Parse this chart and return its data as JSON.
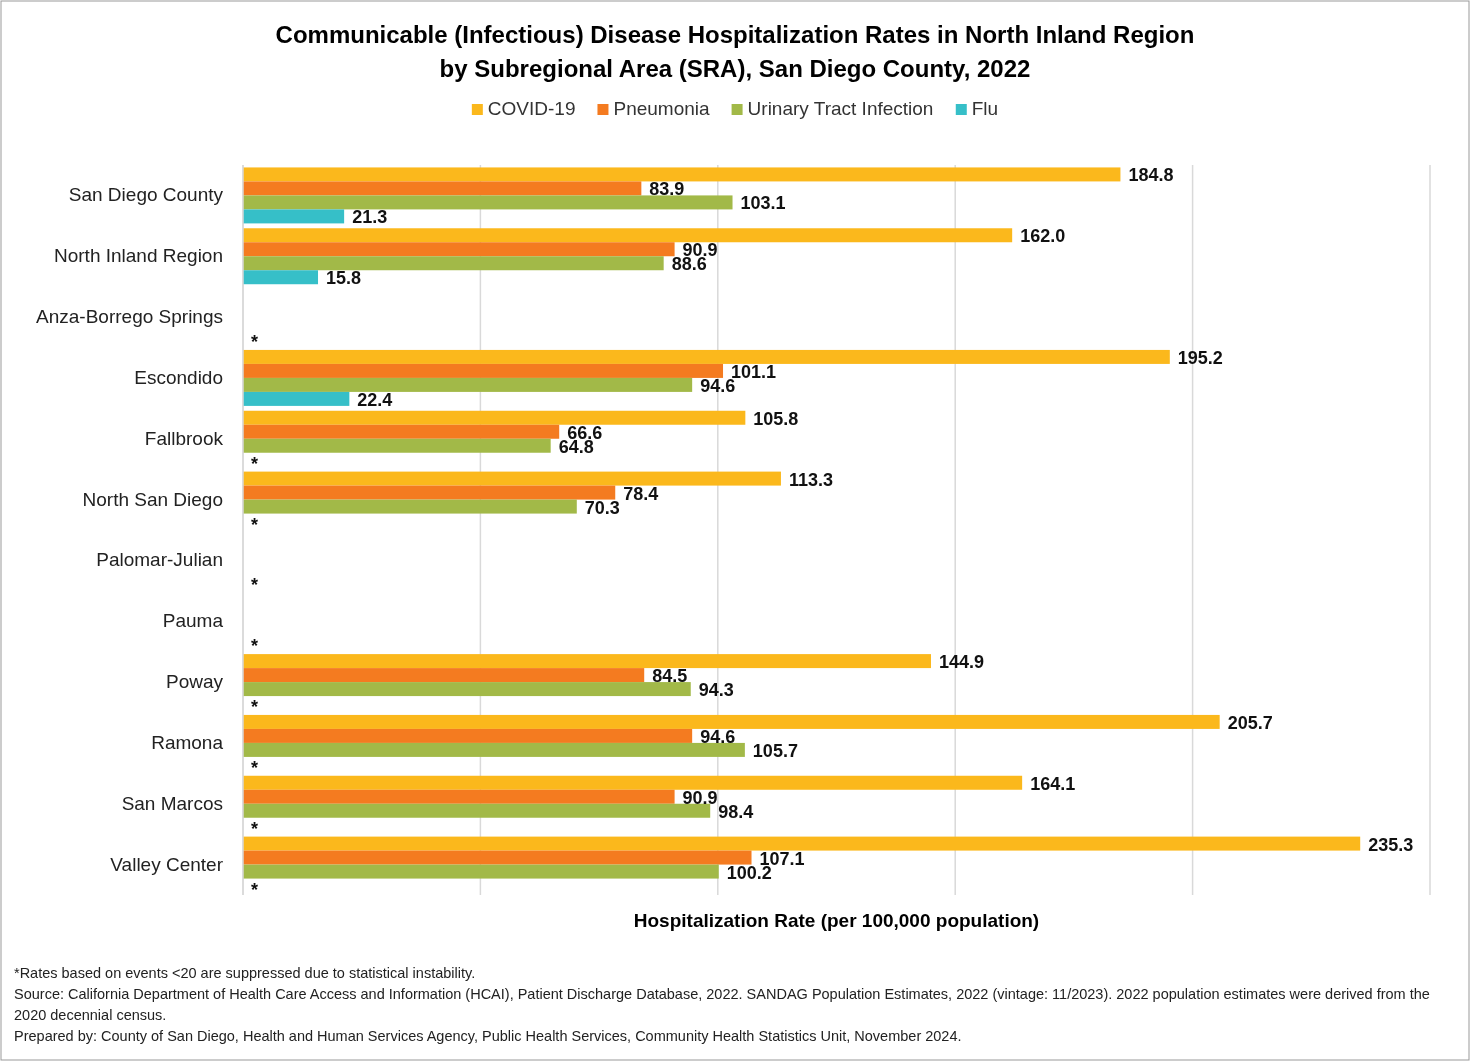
{
  "chart_data": {
    "type": "bar",
    "orientation": "horizontal",
    "title": "Communicable (Infectious) Disease Hospitalization Rates in North Inland Region\nby Subregional Area (SRA), San Diego County, 2022",
    "xlabel": "Hospitalization Rate (per 100,000 population)",
    "categories": [
      "San Diego County",
      "North Inland Region",
      "Anza-Borrego Springs",
      "Escondido",
      "Fallbrook",
      "North San Diego",
      "Palomar-Julian",
      "Pauma",
      "Poway",
      "Ramona",
      "San Marcos",
      "Valley Center"
    ],
    "series": [
      {
        "name": "COVID-19",
        "color": "#fbb81c",
        "values": [
          184.8,
          162.0,
          null,
          195.2,
          105.8,
          113.3,
          null,
          null,
          144.9,
          205.7,
          164.1,
          235.3
        ],
        "value_labels": [
          "184.8",
          "162.0",
          null,
          "195.2",
          "105.8",
          "113.3",
          null,
          null,
          "144.9",
          "205.7",
          "164.1",
          "235.3"
        ]
      },
      {
        "name": "Pneumonia",
        "color": "#f47b20",
        "values": [
          83.9,
          90.9,
          null,
          101.1,
          66.6,
          78.4,
          null,
          null,
          84.5,
          94.6,
          90.9,
          107.1
        ],
        "value_labels": [
          "83.9",
          "90.9",
          null,
          "101.1",
          "66.6",
          "78.4",
          null,
          null,
          "84.5",
          "94.6",
          "90.9",
          "107.1"
        ]
      },
      {
        "name": "Urinary Tract Infection",
        "color": "#a2b948",
        "values": [
          103.1,
          88.6,
          null,
          94.6,
          64.8,
          70.3,
          null,
          null,
          94.3,
          105.7,
          98.4,
          100.2
        ],
        "value_labels": [
          "103.1",
          "88.6",
          null,
          "94.6",
          "64.8",
          "70.3",
          null,
          null,
          "94.3",
          "105.7",
          "98.4",
          "100.2"
        ]
      },
      {
        "name": "Flu",
        "color": "#36bfc8",
        "values": [
          21.3,
          15.8,
          null,
          22.4,
          null,
          null,
          null,
          null,
          null,
          null,
          null,
          null
        ],
        "value_labels": [
          "21.3",
          "15.8",
          "*",
          "22.4",
          "*",
          "*",
          "*",
          "*",
          "*",
          "*",
          "*",
          "*"
        ]
      }
    ],
    "xlim": [
      0,
      250
    ],
    "xticks": [
      {
        "value": 0,
        "label": null
      },
      {
        "value": 50,
        "label": null
      },
      {
        "value": 100,
        "label": null
      },
      {
        "value": 150,
        "label": null
      },
      {
        "value": 200,
        "label": null
      },
      {
        "value": 250,
        "label": null
      }
    ],
    "tick_labels": "y",
    "grid": "x",
    "legend": "top",
    "annotations": [
      "*Rates based on events <20 are suppressed due to statistical instability.",
      "Source: California Department of Health Care Access and Information (HCAI), Patient Discharge Database, 2022. SANDAG Population Estimates, 2022 (vintage: 11/2023). 2022 population estimates were derived from the 2020 decennial census.",
      "Prepared by: County of San Diego, Health and Human Services Agency, Public Health Services, Community Health Statistics Unit, November 2024."
    ]
  }
}
